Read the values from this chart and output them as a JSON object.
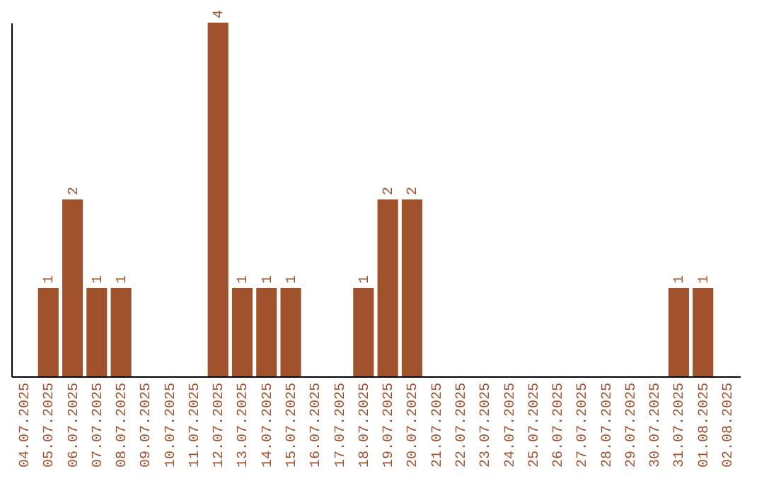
{
  "chart_data": {
    "type": "bar",
    "categories": [
      "04.07.2025",
      "05.07.2025",
      "06.07.2025",
      "07.07.2025",
      "08.07.2025",
      "09.07.2025",
      "10.07.2025",
      "11.07.2025",
      "12.07.2025",
      "13.07.2025",
      "14.07.2025",
      "15.07.2025",
      "16.07.2025",
      "17.07.2025",
      "18.07.2025",
      "19.07.2025",
      "20.07.2025",
      "21.07.2025",
      "22.07.2025",
      "23.07.2025",
      "24.07.2025",
      "25.07.2025",
      "26.07.2025",
      "27.07.2025",
      "28.07.2025",
      "29.07.2025",
      "30.07.2025",
      "31.07.2025",
      "01.08.2025",
      "02.08.2025"
    ],
    "values": [
      0,
      1,
      2,
      1,
      1,
      0,
      0,
      0,
      4,
      1,
      1,
      1,
      0,
      0,
      1,
      2,
      2,
      0,
      0,
      0,
      0,
      0,
      0,
      0,
      0,
      0,
      0,
      1,
      1,
      0
    ],
    "value_labels": [
      null,
      "1",
      "2",
      "1",
      "1",
      null,
      null,
      null,
      "4",
      "1",
      "1",
      "1",
      null,
      null,
      "1",
      "2",
      "2",
      null,
      null,
      null,
      null,
      null,
      null,
      null,
      null,
      null,
      null,
      "1",
      "1",
      null
    ],
    "color": "#a0522d"
  }
}
